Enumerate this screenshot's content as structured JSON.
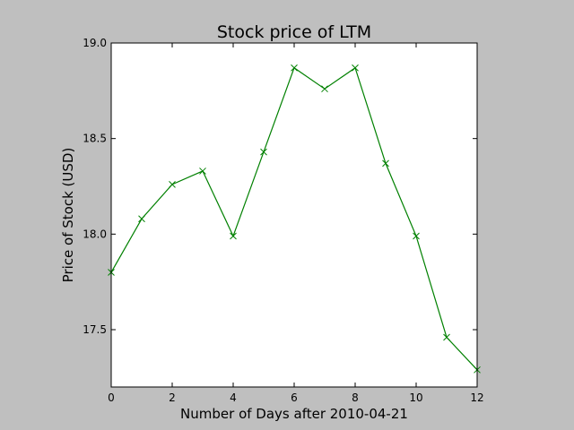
{
  "chart_data": {
    "type": "line",
    "title": "Stock price of LTM",
    "xlabel": "Number of Days after 2010-04-21",
    "ylabel": "Price of Stock (USD)",
    "xlim": [
      0,
      12
    ],
    "ylim": [
      17.2,
      19.0
    ],
    "xticks": [
      0,
      2,
      4,
      6,
      8,
      10,
      12
    ],
    "yticks": [
      17.5,
      18.0,
      18.5,
      19.0
    ],
    "xtick_labels": [
      "0",
      "2",
      "4",
      "6",
      "8",
      "10",
      "12"
    ],
    "ytick_labels": [
      "17.5",
      "18.0",
      "18.5",
      "19.0"
    ],
    "grid": false,
    "background_color": "#bfbfbf",
    "plot_background_color": "#ffffff",
    "series": [
      {
        "color": "#008000",
        "marker": "x",
        "x": [
          0,
          1,
          2,
          3,
          4,
          5,
          6,
          7,
          8,
          9,
          10,
          11,
          12
        ],
        "y": [
          17.8,
          18.08,
          18.26,
          18.33,
          17.99,
          18.43,
          18.87,
          18.76,
          18.87,
          18.37,
          17.99,
          17.46,
          17.29
        ]
      }
    ]
  }
}
